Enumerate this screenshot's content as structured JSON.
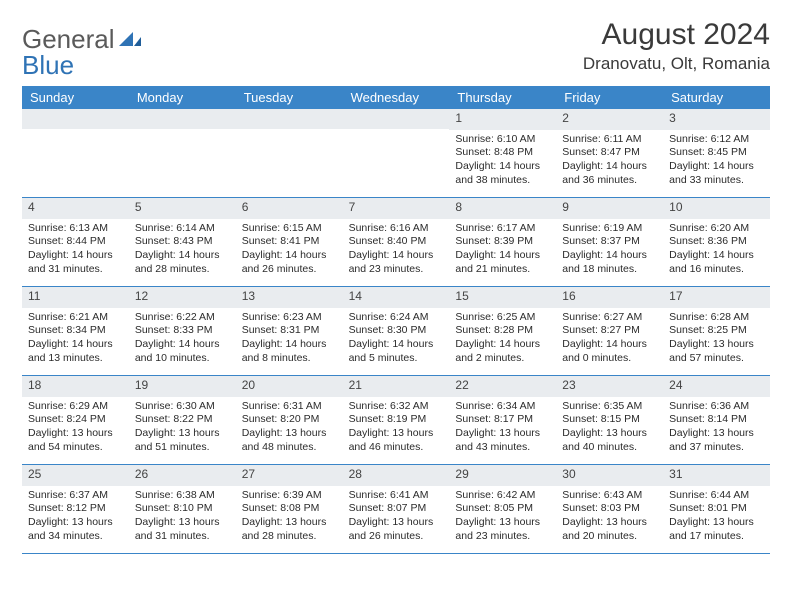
{
  "brand": {
    "word1": "General",
    "word2": "Blue"
  },
  "header": {
    "title": "August 2024",
    "location": "Dranovatu, Olt, Romania"
  },
  "colors": {
    "accent": "#3a85c8",
    "stripe": "#e9ecef"
  },
  "dow": [
    "Sunday",
    "Monday",
    "Tuesday",
    "Wednesday",
    "Thursday",
    "Friday",
    "Saturday"
  ],
  "weeks": [
    [
      {
        "n": "",
        "sr": "",
        "ss": "",
        "dl": ""
      },
      {
        "n": "",
        "sr": "",
        "ss": "",
        "dl": ""
      },
      {
        "n": "",
        "sr": "",
        "ss": "",
        "dl": ""
      },
      {
        "n": "",
        "sr": "",
        "ss": "",
        "dl": ""
      },
      {
        "n": "1",
        "sr": "Sunrise: 6:10 AM",
        "ss": "Sunset: 8:48 PM",
        "dl": "Daylight: 14 hours and 38 minutes."
      },
      {
        "n": "2",
        "sr": "Sunrise: 6:11 AM",
        "ss": "Sunset: 8:47 PM",
        "dl": "Daylight: 14 hours and 36 minutes."
      },
      {
        "n": "3",
        "sr": "Sunrise: 6:12 AM",
        "ss": "Sunset: 8:45 PM",
        "dl": "Daylight: 14 hours and 33 minutes."
      }
    ],
    [
      {
        "n": "4",
        "sr": "Sunrise: 6:13 AM",
        "ss": "Sunset: 8:44 PM",
        "dl": "Daylight: 14 hours and 31 minutes."
      },
      {
        "n": "5",
        "sr": "Sunrise: 6:14 AM",
        "ss": "Sunset: 8:43 PM",
        "dl": "Daylight: 14 hours and 28 minutes."
      },
      {
        "n": "6",
        "sr": "Sunrise: 6:15 AM",
        "ss": "Sunset: 8:41 PM",
        "dl": "Daylight: 14 hours and 26 minutes."
      },
      {
        "n": "7",
        "sr": "Sunrise: 6:16 AM",
        "ss": "Sunset: 8:40 PM",
        "dl": "Daylight: 14 hours and 23 minutes."
      },
      {
        "n": "8",
        "sr": "Sunrise: 6:17 AM",
        "ss": "Sunset: 8:39 PM",
        "dl": "Daylight: 14 hours and 21 minutes."
      },
      {
        "n": "9",
        "sr": "Sunrise: 6:19 AM",
        "ss": "Sunset: 8:37 PM",
        "dl": "Daylight: 14 hours and 18 minutes."
      },
      {
        "n": "10",
        "sr": "Sunrise: 6:20 AM",
        "ss": "Sunset: 8:36 PM",
        "dl": "Daylight: 14 hours and 16 minutes."
      }
    ],
    [
      {
        "n": "11",
        "sr": "Sunrise: 6:21 AM",
        "ss": "Sunset: 8:34 PM",
        "dl": "Daylight: 14 hours and 13 minutes."
      },
      {
        "n": "12",
        "sr": "Sunrise: 6:22 AM",
        "ss": "Sunset: 8:33 PM",
        "dl": "Daylight: 14 hours and 10 minutes."
      },
      {
        "n": "13",
        "sr": "Sunrise: 6:23 AM",
        "ss": "Sunset: 8:31 PM",
        "dl": "Daylight: 14 hours and 8 minutes."
      },
      {
        "n": "14",
        "sr": "Sunrise: 6:24 AM",
        "ss": "Sunset: 8:30 PM",
        "dl": "Daylight: 14 hours and 5 minutes."
      },
      {
        "n": "15",
        "sr": "Sunrise: 6:25 AM",
        "ss": "Sunset: 8:28 PM",
        "dl": "Daylight: 14 hours and 2 minutes."
      },
      {
        "n": "16",
        "sr": "Sunrise: 6:27 AM",
        "ss": "Sunset: 8:27 PM",
        "dl": "Daylight: 14 hours and 0 minutes."
      },
      {
        "n": "17",
        "sr": "Sunrise: 6:28 AM",
        "ss": "Sunset: 8:25 PM",
        "dl": "Daylight: 13 hours and 57 minutes."
      }
    ],
    [
      {
        "n": "18",
        "sr": "Sunrise: 6:29 AM",
        "ss": "Sunset: 8:24 PM",
        "dl": "Daylight: 13 hours and 54 minutes."
      },
      {
        "n": "19",
        "sr": "Sunrise: 6:30 AM",
        "ss": "Sunset: 8:22 PM",
        "dl": "Daylight: 13 hours and 51 minutes."
      },
      {
        "n": "20",
        "sr": "Sunrise: 6:31 AM",
        "ss": "Sunset: 8:20 PM",
        "dl": "Daylight: 13 hours and 48 minutes."
      },
      {
        "n": "21",
        "sr": "Sunrise: 6:32 AM",
        "ss": "Sunset: 8:19 PM",
        "dl": "Daylight: 13 hours and 46 minutes."
      },
      {
        "n": "22",
        "sr": "Sunrise: 6:34 AM",
        "ss": "Sunset: 8:17 PM",
        "dl": "Daylight: 13 hours and 43 minutes."
      },
      {
        "n": "23",
        "sr": "Sunrise: 6:35 AM",
        "ss": "Sunset: 8:15 PM",
        "dl": "Daylight: 13 hours and 40 minutes."
      },
      {
        "n": "24",
        "sr": "Sunrise: 6:36 AM",
        "ss": "Sunset: 8:14 PM",
        "dl": "Daylight: 13 hours and 37 minutes."
      }
    ],
    [
      {
        "n": "25",
        "sr": "Sunrise: 6:37 AM",
        "ss": "Sunset: 8:12 PM",
        "dl": "Daylight: 13 hours and 34 minutes."
      },
      {
        "n": "26",
        "sr": "Sunrise: 6:38 AM",
        "ss": "Sunset: 8:10 PM",
        "dl": "Daylight: 13 hours and 31 minutes."
      },
      {
        "n": "27",
        "sr": "Sunrise: 6:39 AM",
        "ss": "Sunset: 8:08 PM",
        "dl": "Daylight: 13 hours and 28 minutes."
      },
      {
        "n": "28",
        "sr": "Sunrise: 6:41 AM",
        "ss": "Sunset: 8:07 PM",
        "dl": "Daylight: 13 hours and 26 minutes."
      },
      {
        "n": "29",
        "sr": "Sunrise: 6:42 AM",
        "ss": "Sunset: 8:05 PM",
        "dl": "Daylight: 13 hours and 23 minutes."
      },
      {
        "n": "30",
        "sr": "Sunrise: 6:43 AM",
        "ss": "Sunset: 8:03 PM",
        "dl": "Daylight: 13 hours and 20 minutes."
      },
      {
        "n": "31",
        "sr": "Sunrise: 6:44 AM",
        "ss": "Sunset: 8:01 PM",
        "dl": "Daylight: 13 hours and 17 minutes."
      }
    ]
  ]
}
